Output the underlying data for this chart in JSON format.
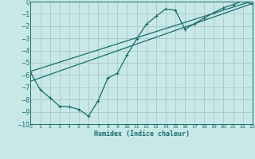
{
  "xlabel": "Humidex (Indice chaleur)",
  "background_color": "#c8e8e8",
  "grid_color": "#a8c8c8",
  "line_color": "#1a6b6b",
  "xlim": [
    0,
    23
  ],
  "ylim": [
    -10,
    0
  ],
  "xticks": [
    0,
    1,
    2,
    3,
    4,
    5,
    6,
    7,
    8,
    9,
    10,
    11,
    12,
    13,
    14,
    15,
    16,
    17,
    18,
    19,
    20,
    21,
    22,
    23
  ],
  "yticks": [
    0,
    -1,
    -2,
    -3,
    -4,
    -5,
    -6,
    -7,
    -8,
    -9,
    -10
  ],
  "curve_x": [
    0,
    1,
    2,
    3,
    4,
    5,
    6,
    7,
    8,
    9,
    10,
    11,
    12,
    13,
    14,
    15,
    16,
    17,
    18,
    19,
    20,
    21,
    22,
    23
  ],
  "curve_y": [
    -5.8,
    -7.2,
    -7.85,
    -8.55,
    -8.6,
    -8.8,
    -9.35,
    -8.1,
    -6.25,
    -5.85,
    -4.35,
    -3.05,
    -1.85,
    -1.2,
    -0.6,
    -0.7,
    -2.25,
    -1.8,
    -1.35,
    -0.9,
    -0.5,
    -0.25,
    0.05,
    -0.2
  ],
  "line1_x": [
    0,
    23
  ],
  "line1_y": [
    -6.5,
    -0.15
  ],
  "line2_x": [
    0,
    23
  ],
  "line2_y": [
    -5.7,
    0.05
  ],
  "xtick_fontsize": 4.5,
  "ytick_fontsize": 5.5,
  "xlabel_fontsize": 6.0
}
